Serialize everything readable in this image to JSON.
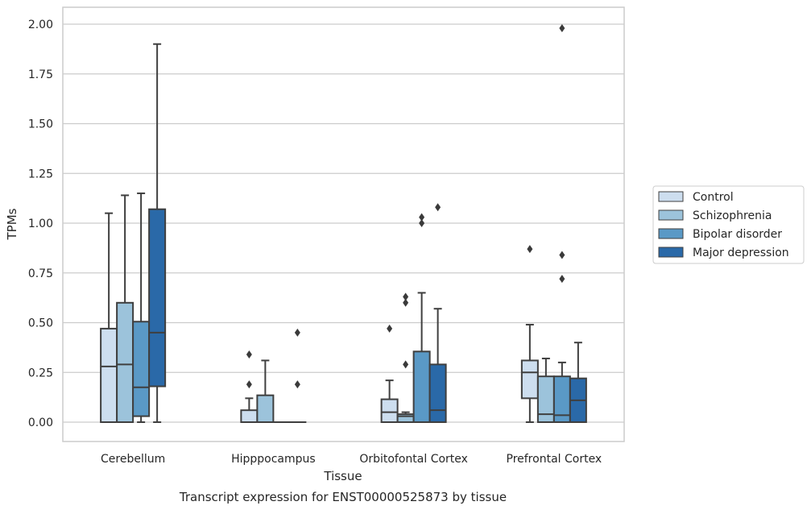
{
  "chart_data": {
    "type": "box",
    "title": "",
    "caption": "Transcript expression for ENST00000525873 by tissue",
    "xlabel": "Tissue",
    "ylabel": "TPMs",
    "ylim": [
      -0.1,
      2.08
    ],
    "yticks": [
      "0.00",
      "0.25",
      "0.50",
      "0.75",
      "1.00",
      "1.25",
      "1.50",
      "1.75",
      "2.00"
    ],
    "ytick_values": [
      0,
      0.25,
      0.5,
      0.75,
      1.0,
      1.25,
      1.5,
      1.75,
      2.0
    ],
    "grid": "horizontal",
    "legend_position": "right",
    "categories": [
      "Cerebellum",
      "Hipppocampus",
      "Orbitofontal Cortex",
      "Prefrontal Cortex"
    ],
    "series": [
      {
        "name": "Control",
        "color": "#cddeef",
        "boxes": [
          {
            "whisker_low": 0,
            "q1": 0,
            "median": 0.28,
            "q3": 0.47,
            "whisker_high": 1.05,
            "outliers": []
          },
          {
            "whisker_low": 0,
            "q1": 0,
            "median": 0,
            "q3": 0.06,
            "whisker_high": 0.12,
            "outliers": [
              0.19,
              0.34
            ]
          },
          {
            "whisker_low": 0,
            "q1": 0,
            "median": 0.05,
            "q3": 0.115,
            "whisker_high": 0.21,
            "outliers": [
              0.47
            ]
          },
          {
            "whisker_low": 0,
            "q1": 0.12,
            "median": 0.25,
            "q3": 0.31,
            "whisker_high": 0.49,
            "outliers": [
              0.87
            ]
          }
        ]
      },
      {
        "name": "Schizophrenia",
        "color": "#9cc3db",
        "boxes": [
          {
            "whisker_low": 0,
            "q1": 0,
            "median": 0.29,
            "q3": 0.6,
            "whisker_high": 1.14,
            "outliers": []
          },
          {
            "whisker_low": 0,
            "q1": 0,
            "median": 0,
            "q3": 0.135,
            "whisker_high": 0.31,
            "outliers": []
          },
          {
            "whisker_low": 0,
            "q1": 0,
            "median": 0.03,
            "q3": 0.04,
            "whisker_high": 0.05,
            "outliers": [
              0.29,
              0.6,
              0.63
            ]
          },
          {
            "whisker_low": 0,
            "q1": 0,
            "median": 0.04,
            "q3": 0.23,
            "whisker_high": 0.32,
            "outliers": []
          }
        ]
      },
      {
        "name": "Bipolar disorder",
        "color": "#5a99c6",
        "boxes": [
          {
            "whisker_low": 0,
            "q1": 0.03,
            "median": 0.175,
            "q3": 0.505,
            "whisker_high": 1.15,
            "outliers": []
          },
          {
            "whisker_low": 0,
            "q1": 0,
            "median": 0,
            "q3": 0,
            "whisker_high": 0,
            "outliers": []
          },
          {
            "whisker_low": 0,
            "q1": 0,
            "median": 0,
            "q3": 0.355,
            "whisker_high": 0.65,
            "outliers": [
              1.0,
              1.03
            ]
          },
          {
            "whisker_low": 0,
            "q1": 0,
            "median": 0.035,
            "q3": 0.23,
            "whisker_high": 0.3,
            "outliers": [
              0.72,
              0.84,
              1.98
            ]
          }
        ]
      },
      {
        "name": "Major depression",
        "color": "#2a69a8",
        "boxes": [
          {
            "whisker_low": 0,
            "q1": 0.18,
            "median": 0.45,
            "q3": 1.07,
            "whisker_high": 1.9,
            "outliers": []
          },
          {
            "whisker_low": 0,
            "q1": 0,
            "median": 0,
            "q3": 0,
            "whisker_high": 0,
            "outliers": [
              0.19,
              0.45
            ]
          },
          {
            "whisker_low": 0,
            "q1": 0,
            "median": 0.06,
            "q3": 0.29,
            "whisker_high": 0.57,
            "outliers": [
              1.08
            ]
          },
          {
            "whisker_low": 0,
            "q1": 0,
            "median": 0.11,
            "q3": 0.22,
            "whisker_high": 0.4,
            "outliers": []
          }
        ]
      }
    ]
  }
}
